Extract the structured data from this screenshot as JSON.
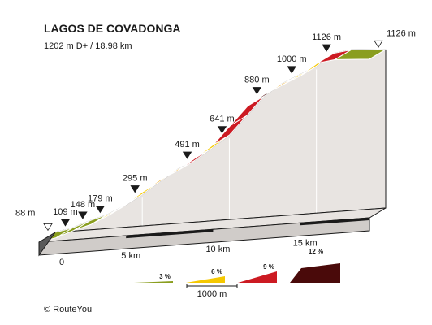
{
  "chart_data": {
    "type": "area",
    "title": "LAGOS DE COVADONGA",
    "subtitle": "1202 m D+ / 18.98 km",
    "x_unit": "km",
    "y_unit": "m",
    "elevation_profile": [
      {
        "x": 0,
        "y": 88
      },
      {
        "x": 1.0,
        "y": 109
      },
      {
        "x": 2.0,
        "y": 148
      },
      {
        "x": 3.0,
        "y": 179
      },
      {
        "x": 4.0,
        "y": 230
      },
      {
        "x": 5.0,
        "y": 295
      },
      {
        "x": 6.0,
        "y": 370
      },
      {
        "x": 7.0,
        "y": 440
      },
      {
        "x": 8.0,
        "y": 491
      },
      {
        "x": 9.0,
        "y": 565
      },
      {
        "x": 10.0,
        "y": 641
      },
      {
        "x": 11.0,
        "y": 760
      },
      {
        "x": 12.0,
        "y": 880
      },
      {
        "x": 13.0,
        "y": 950
      },
      {
        "x": 14.0,
        "y": 1000
      },
      {
        "x": 15.0,
        "y": 1050
      },
      {
        "x": 16.0,
        "y": 1126
      },
      {
        "x": 17.0,
        "y": 1140
      },
      {
        "x": 18.98,
        "y": 1126
      }
    ],
    "segment_colors": [
      "#8a9e1f",
      "#8a9e1f",
      "#8a9e1f",
      "#f5c800",
      "#8a9e1f",
      "#f5c800",
      "#f0a000",
      "#f0a000",
      "#cc1a22",
      "#f5c800",
      "#cc1a22",
      "#cc1a22",
      "#4a0a0a",
      "#f0a000",
      "#f5c800",
      "#f5c800",
      "#cc1a22",
      "#8a9e1f"
    ],
    "elevation_labels": [
      {
        "x": 0,
        "text": "88 m"
      },
      {
        "x": 1.0,
        "text": "109 m"
      },
      {
        "x": 2.0,
        "text": "148 m"
      },
      {
        "x": 3.0,
        "text": "179 m"
      },
      {
        "x": 5.0,
        "text": "295 m"
      },
      {
        "x": 8.0,
        "text": "491 m"
      },
      {
        "x": 10.0,
        "text": "641 m"
      },
      {
        "x": 12.0,
        "text": "880 m"
      },
      {
        "x": 14.0,
        "text": "1000 m"
      },
      {
        "x": 16.0,
        "text": "1126 m"
      },
      {
        "x": 18.98,
        "text": "1126 m"
      }
    ],
    "x_ticks": [
      {
        "x": 0,
        "label": "0"
      },
      {
        "x": 5,
        "label": "5 km"
      },
      {
        "x": 10,
        "label": "10 km"
      },
      {
        "x": 15,
        "label": "15 km"
      }
    ],
    "legend": {
      "grades": [
        {
          "label": "3 %",
          "color": "#8a9e1f"
        },
        {
          "label": "6 %",
          "color": "#f5c800"
        },
        {
          "label": "9 %",
          "color": "#cc1a22"
        },
        {
          "label": "12 %",
          "color": "#4a0a0a"
        }
      ],
      "scale_label": "1000 m"
    }
  },
  "footer": {
    "copyright": "©  RouteYou"
  },
  "colors": {
    "wall": "#e8e4e1",
    "base_front": "#d0ccc9",
    "base_side": "#5a5a5a",
    "outline": "#1a1a1a",
    "grid": "#ffffff"
  }
}
